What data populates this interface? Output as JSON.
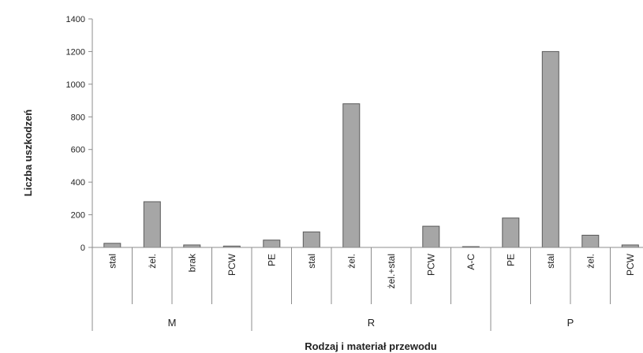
{
  "chart_data": {
    "type": "bar",
    "title": "",
    "xlabel": "Rodzaj i materiał przewodu",
    "ylabel": "Liczba uszkodzeń",
    "ylim": [
      0,
      1400
    ],
    "yticks": [
      0,
      200,
      400,
      600,
      800,
      1000,
      1200,
      1400
    ],
    "grid": false,
    "legend": "none",
    "colors": {
      "bar": "#a6a6a6",
      "bar_stroke": "#5a5a5a",
      "axis": "#8c8c8c"
    },
    "groups": [
      {
        "label": "M",
        "categories": [
          "stal",
          "żel.",
          "brak",
          "PCW"
        ],
        "values": [
          25,
          280,
          15,
          8
        ]
      },
      {
        "label": "R",
        "categories": [
          "PE",
          "stal",
          "żel.",
          "żel.+stal",
          "PCW",
          "A-C"
        ],
        "values": [
          45,
          95,
          880,
          0,
          130,
          5
        ]
      },
      {
        "label": "P",
        "categories": [
          "PE",
          "stal",
          "żel.",
          "PCW"
        ],
        "values": [
          180,
          1200,
          75,
          15
        ]
      }
    ]
  }
}
